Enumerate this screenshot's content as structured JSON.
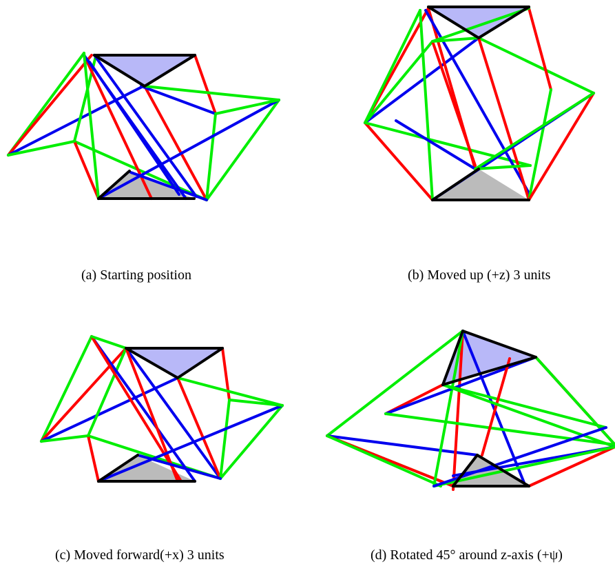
{
  "captions": {
    "a": "(a) Starting position",
    "b": "(b) Moved up (+z) 3 units",
    "c": "(c) Moved forward(+x) 3 units",
    "d": "(d) Rotated 45° around z-axis (+ψ)"
  },
  "colors": {
    "red": "#ff0000",
    "green": "#00ee00",
    "blue": "#0000ee",
    "black": "#000000",
    "top_platform_fill": "#b8b8f8",
    "bottom_platform_fill": "#bbbbbb"
  }
}
